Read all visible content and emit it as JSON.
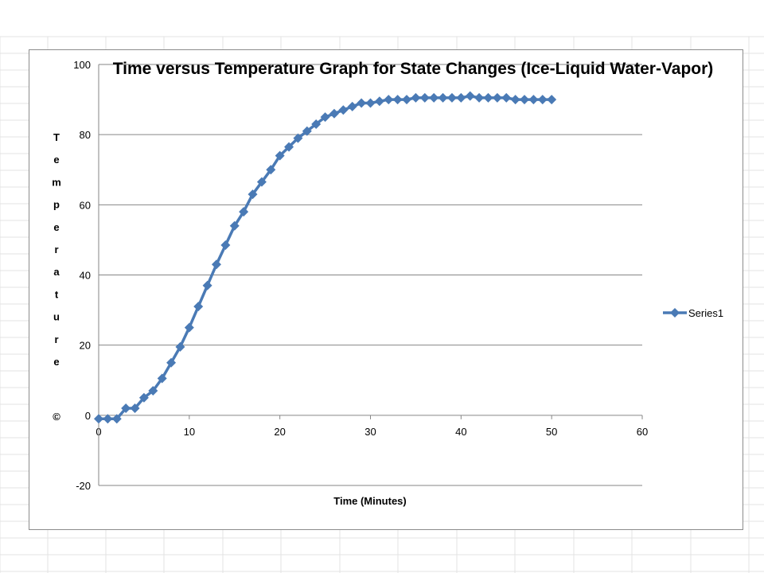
{
  "chart_data": {
    "type": "line",
    "title": "Time versus Temperature Graph for State Changes (Ice-Liquid Water-Vapor)",
    "xlabel": "Time (Minutes)",
    "ylabel": "Temperature",
    "ylabel_suffix": "©",
    "xlim": [
      0,
      60
    ],
    "ylim": [
      -20,
      100
    ],
    "x_ticks": [
      0,
      10,
      20,
      30,
      40,
      50,
      60
    ],
    "y_ticks": [
      -20,
      0,
      20,
      40,
      60,
      80,
      100
    ],
    "grid": "horizontal",
    "legend_position": "right",
    "series": [
      {
        "name": "Series1",
        "color": "#4a7ab5",
        "marker": "diamond",
        "x": [
          0,
          1,
          2,
          3,
          4,
          5,
          6,
          7,
          8,
          9,
          10,
          11,
          12,
          13,
          14,
          15,
          16,
          17,
          18,
          19,
          20,
          21,
          22,
          23,
          24,
          25,
          26,
          27,
          28,
          29,
          30,
          31,
          32,
          33,
          34,
          35,
          36,
          37,
          38,
          39,
          40,
          41,
          42,
          43,
          44,
          45,
          46,
          47,
          48,
          49,
          50
        ],
        "values": [
          -1,
          -1,
          -1,
          2,
          2,
          5,
          7,
          10.5,
          15,
          19.5,
          25,
          31,
          37,
          43,
          48.5,
          54,
          58,
          63,
          66.5,
          70,
          74,
          76.5,
          79,
          81,
          83,
          85,
          86,
          87,
          88,
          89,
          89,
          89.5,
          90,
          90,
          90,
          90.5,
          90.5,
          90.5,
          90.5,
          90.5,
          90.5,
          91,
          90.5,
          90.5,
          90.5,
          90.5,
          90,
          90,
          90,
          90,
          90
        ]
      }
    ]
  }
}
